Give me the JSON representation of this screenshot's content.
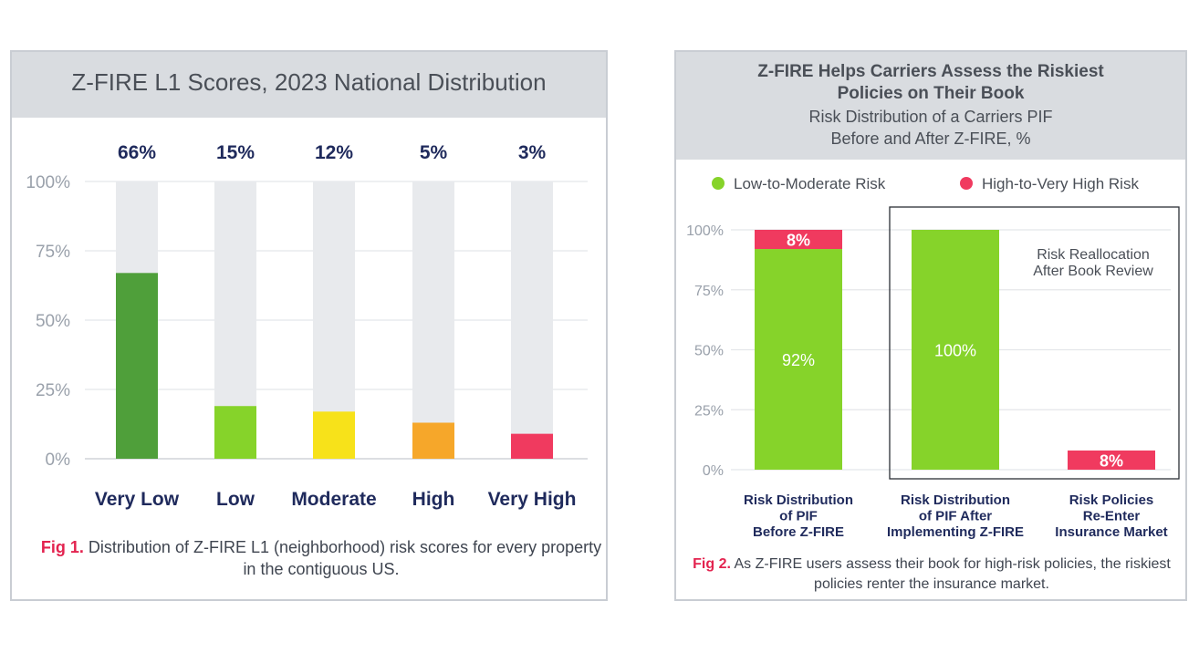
{
  "chart_data": [
    {
      "type": "bar",
      "title": "Z-FIRE L1 Scores, 2023 National Distribution",
      "categories": [
        "Very Low",
        "Low",
        "Moderate",
        "High",
        "Very High"
      ],
      "values": [
        66,
        15,
        12,
        5,
        3
      ],
      "value_labels": [
        "66%",
        "15%",
        "12%",
        "5%",
        "3%"
      ],
      "bar_heights_percent": [
        67,
        19,
        17,
        13,
        9
      ],
      "colors": [
        "#4f9f3a",
        "#86d32a",
        "#f7e21a",
        "#f6a72a",
        "#f03a5f"
      ],
      "track_color": "#e8eaed",
      "ylim": [
        0,
        100
      ],
      "yticks": [
        "100%",
        "75%",
        "50%",
        "25%",
        "0%"
      ],
      "grid": true,
      "caption_fig": "Fig 1.",
      "caption_text": "Distribution of Z-FIRE L1 (neighborhood) risk scores for every property in the contiguous US."
    },
    {
      "type": "bar",
      "title_lines": [
        "Z-FIRE Helps Carriers Assess the Riskiest",
        "Policies on Their Book"
      ],
      "subtitle_lines": [
        "Risk Distribution of a Carriers PIF",
        "Before and After Z-FIRE, %"
      ],
      "categories": [
        [
          "Risk Distribution",
          "of PIF",
          "Before Z-FIRE"
        ],
        [
          "Risk Distribution",
          "of PIF After",
          "Implementing Z-FIRE"
        ],
        [
          "Risk Policies",
          "Re-Enter",
          "Insurance Market"
        ]
      ],
      "series": [
        {
          "name": "Low-to-Moderate Risk",
          "color": "#86d32a",
          "values": [
            92,
            100,
            0
          ],
          "labels": [
            "92%",
            "100%",
            ""
          ]
        },
        {
          "name": "High-to-Very High Risk",
          "color": "#f03a5f",
          "values": [
            8,
            0,
            8
          ],
          "labels": [
            "8%",
            "",
            "8%"
          ]
        }
      ],
      "stacked": true,
      "ylim": [
        0,
        100
      ],
      "yticks": [
        "100%",
        "75%",
        "50%",
        "25%",
        "0%"
      ],
      "grid": true,
      "legend_position": "top",
      "annotation_lines": [
        "Risk Reallocation",
        "After Book Review"
      ],
      "caption_fig": "Fig 2.",
      "caption_text": "As Z-FIRE users assess their book for high-risk policies, the riskiest policies renter the insurance market."
    }
  ]
}
